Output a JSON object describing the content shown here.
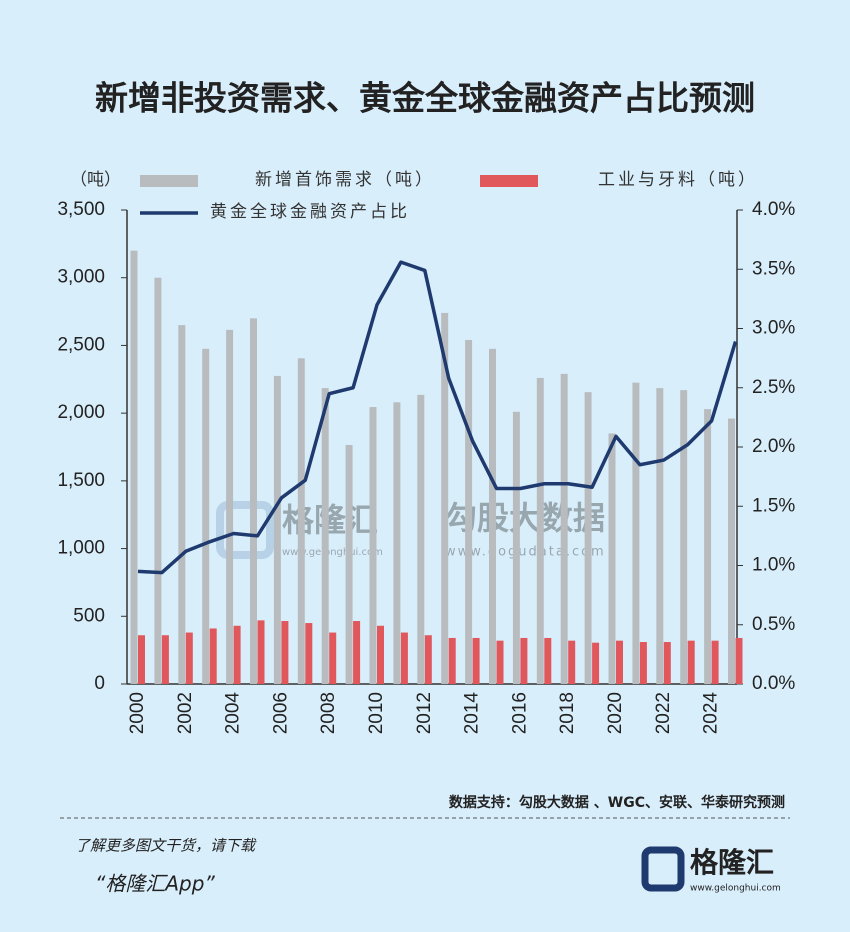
{
  "chart_data": {
    "type": "combo",
    "title": "新增非投资需求、黄金全球金融资产占比预测",
    "y_unit": "（吨）",
    "categories": [
      "2000",
      null,
      "2002",
      null,
      "2004",
      null,
      "2006",
      null,
      "2008",
      null,
      "2010",
      null,
      "2012",
      null,
      "2014",
      null,
      "2016",
      null,
      "2018",
      null,
      "2020",
      null,
      "2022",
      null,
      "2024",
      null
    ],
    "series": [
      {
        "name": "新增首饰需求（吨）",
        "color": "#b9bcbf",
        "type": "bar",
        "values": [
          3200,
          3000,
          2650,
          2475,
          2615,
          2700,
          2275,
          2405,
          2185,
          1765,
          2045,
          2080,
          2135,
          2740,
          2540,
          2475,
          2010,
          2260,
          2290,
          2155,
          1850,
          2225,
          2185,
          2170,
          2030,
          1960
        ]
      },
      {
        "name": "工业与牙料（吨）",
        "color": "#e0575c",
        "type": "bar",
        "values": [
          360,
          360,
          380,
          410,
          430,
          470,
          465,
          450,
          380,
          465,
          430,
          380,
          360,
          340,
          340,
          320,
          340,
          340,
          320,
          305,
          320,
          310,
          310,
          320,
          320,
          340
        ]
      },
      {
        "name": "黄金全球金融资产占比",
        "color": "#1f3a6e",
        "type": "line",
        "axis": "y2",
        "values": [
          0.95,
          0.94,
          1.12,
          1.2,
          1.27,
          1.25,
          1.57,
          1.72,
          2.45,
          2.5,
          3.2,
          3.56,
          3.49,
          2.58,
          2.05,
          1.65,
          1.65,
          1.69,
          1.69,
          1.66,
          2.09,
          1.85,
          1.89,
          2.02,
          2.22,
          2.89
        ]
      }
    ],
    "ylim": [
      0,
      3500
    ],
    "yticks": [
      0,
      500,
      {
        "value": 1000,
        "label": "1,000"
      },
      {
        "value": 1500,
        "label": "1,500"
      },
      {
        "value": 2000,
        "label": "2,000"
      },
      {
        "value": 2500,
        "label": "2,500"
      },
      {
        "value": 3000,
        "label": "3,000"
      },
      {
        "value": 3500,
        "label": "3,500"
      }
    ],
    "y2lim": [
      0,
      4
    ],
    "y2ticks": [
      {
        "value": 0,
        "label": "0.0%"
      },
      {
        "value": 0.5,
        "label": "0.5%"
      },
      {
        "value": 1,
        "label": "1.0%"
      },
      {
        "value": 1.5,
        "label": "1.5%"
      },
      {
        "value": 2,
        "label": "2.0%"
      },
      {
        "value": 2.5,
        "label": "2.5%"
      },
      {
        "value": 3,
        "label": "3.0%"
      },
      {
        "value": 3.5,
        "label": "3.5%"
      },
      {
        "value": 4,
        "label": "4.0%"
      }
    ],
    "source": "数据支持：勾股大数据 、WGC、安联、华泰研究预测"
  },
  "watermark": {
    "brand1": "格隆汇",
    "url1": "www.gelonghui.com",
    "brand2": "勾股大数据",
    "url2": "www.gogudata.com"
  },
  "footer": {
    "prompt": "了解更多图文干货，请下载",
    "app": "“格隆汇App”",
    "logo": "格隆汇",
    "logo_url": "www.gelonghui.com"
  }
}
